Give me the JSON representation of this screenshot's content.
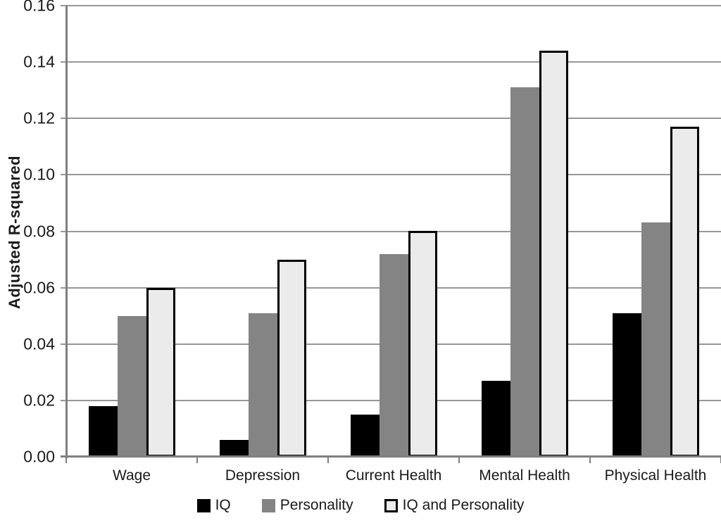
{
  "chart_data": {
    "type": "bar",
    "title": "",
    "xlabel": "",
    "ylabel": "Adjusted R-squared",
    "ylim": [
      0,
      0.16
    ],
    "ytick_step": 0.02,
    "ytick_labels": [
      "0.16",
      "0.14",
      "0.12",
      "0.10",
      "0.08",
      "0.06",
      "0.04",
      "0.02",
      "0.00"
    ],
    "categories": [
      "Wage",
      "Depression",
      "Current Health",
      "Mental Health",
      "Physical Health"
    ],
    "series": [
      {
        "name": "IQ",
        "color": "#000000",
        "border_color": "#000000",
        "values": [
          0.018,
          0.006,
          0.015,
          0.027,
          0.051
        ]
      },
      {
        "name": "Personality",
        "color": "#848484",
        "border_color": "#848484",
        "values": [
          0.05,
          0.051,
          0.072,
          0.131,
          0.083
        ]
      },
      {
        "name": "IQ and Personality",
        "color": "#ebebeb",
        "border_color": "#000000",
        "values": [
          0.06,
          0.07,
          0.08,
          0.144,
          0.117
        ]
      }
    ],
    "grid": true,
    "legend_position": "bottom",
    "colors": {
      "gridline": "#979797",
      "axis": "#7f7f7f",
      "text": "#1a1a1a",
      "background": "#ffffff"
    }
  }
}
